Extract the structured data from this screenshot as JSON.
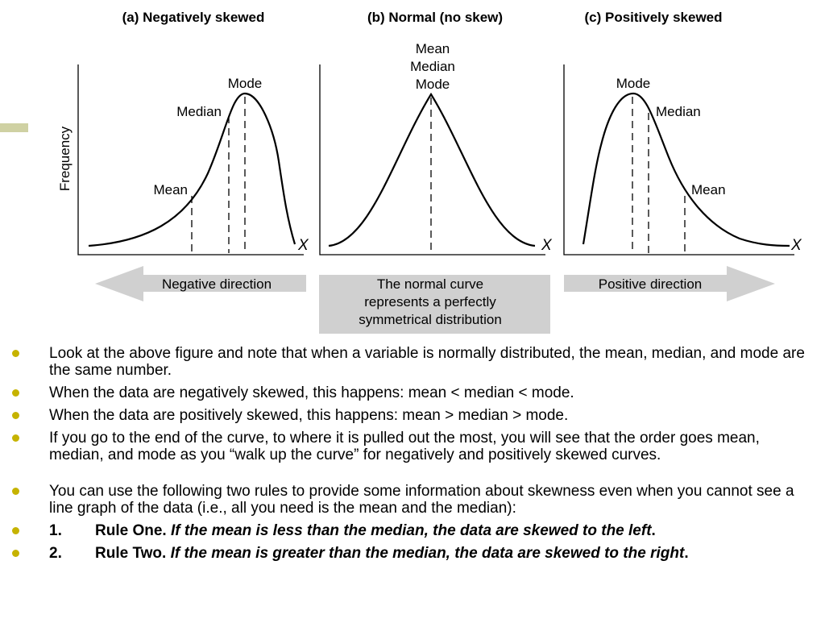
{
  "panels": [
    {
      "title": "(a) Negatively skewed",
      "labels": {
        "mode": "Mode",
        "median": "Median",
        "mean": "Mean"
      },
      "x_axis": "X"
    },
    {
      "title": "(b) Normal (no skew)",
      "labels": {
        "mean": "Mean",
        "median": "Median",
        "mode": "Mode"
      },
      "x_axis": "X"
    },
    {
      "title": "(c) Positively skewed",
      "labels": {
        "mode": "Mode",
        "median": "Median",
        "mean": "Mean"
      },
      "x_axis": "X"
    }
  ],
  "y_axis_label": "Frequency",
  "banners": {
    "negative": "Negative direction",
    "normal_line1": "The normal curve",
    "normal_line2": "represents a perfectly",
    "normal_line3": "symmetrical distribution",
    "positive": "Positive direction"
  },
  "bullets": [
    "Look at the above figure and note that when a variable is normally distributed, the mean, median, and mode are the same number.",
    "When the data are negatively skewed, this happens: mean < median < mode.",
    "When the data are positively skewed, this happens: mean > median > mode.",
    "If you go to the end of the curve, to where it is pulled out the most, you will see that the order goes mean, median, and mode as you “walk up the curve” for negatively and positively skewed curves.",
    "You can use the following two rules to provide some information about skewness even when you cannot see a line graph of the data (i.e., all you need is the mean and the median):"
  ],
  "rules": [
    {
      "number": "1.",
      "name": "Rule One.",
      "text": "If the mean is less than the median, the data are skewed to the left",
      "end": "."
    },
    {
      "number": "2.",
      "name": "Rule Two.",
      "text": "If the mean is greater than the median, the data are skewed to the right",
      "end": "."
    }
  ],
  "colors": {
    "bullet": "#c6b300",
    "accent_bar": "#cfd1a3",
    "banner_fill": "#d0d0d0",
    "ink": "#000000"
  }
}
